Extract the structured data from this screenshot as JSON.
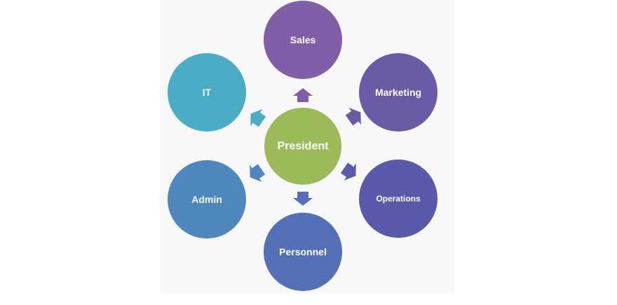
{
  "diagram": {
    "center": {
      "label": "President",
      "color": "#9bbb59"
    },
    "nodes": [
      {
        "id": "sales",
        "label": "Sales",
        "color": "#7f5fa8"
      },
      {
        "id": "marketing",
        "label": "Marketing",
        "color": "#6b5aa6"
      },
      {
        "id": "operations",
        "label": "Operations",
        "color": "#5a5aac"
      },
      {
        "id": "personnel",
        "label": "Personnel",
        "color": "#5470b8"
      },
      {
        "id": "admin",
        "label": "Admin",
        "color": "#4e88be"
      },
      {
        "id": "it",
        "label": "IT",
        "color": "#4bacc6"
      }
    ]
  }
}
